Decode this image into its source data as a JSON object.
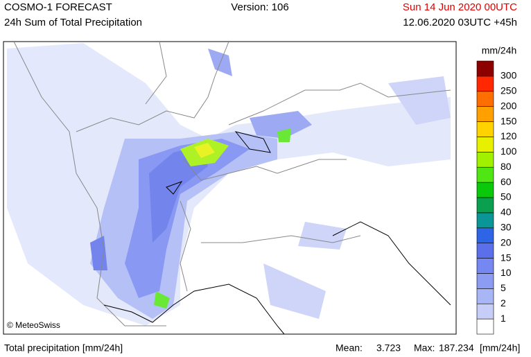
{
  "header": {
    "title": "COSMO-1 FORECAST",
    "subtitle": "24h Sum of Total Precipitation",
    "version": "Version: 106",
    "valid_time": "Sun 14 Jun 2020 00UTC",
    "run_time": "12.06.2020 03UTC +45h"
  },
  "map": {
    "credit": "© MeteoSwiss"
  },
  "legend": {
    "unit": "mm/24h",
    "levels": [
      1,
      2,
      5,
      10,
      15,
      20,
      30,
      40,
      50,
      60,
      80,
      100,
      120,
      150,
      200,
      250,
      300
    ],
    "colors": [
      "#ffffff",
      "#c6cef7",
      "#a9b6f5",
      "#8c9cf2",
      "#7587f0",
      "#5b6feb",
      "#2e64e6",
      "#0a9696",
      "#0aa050",
      "#0ac80a",
      "#50e614",
      "#a0f000",
      "#e6f000",
      "#ffd200",
      "#ffa000",
      "#ff6e00",
      "#ff2800",
      "#8c0000"
    ]
  },
  "footer": {
    "field": "Total precipitation [mm/24h]",
    "mean_label": "Mean:",
    "mean": 3.723,
    "max_label": "Max:",
    "max": 187.234,
    "unit": "[mm/24h]"
  }
}
